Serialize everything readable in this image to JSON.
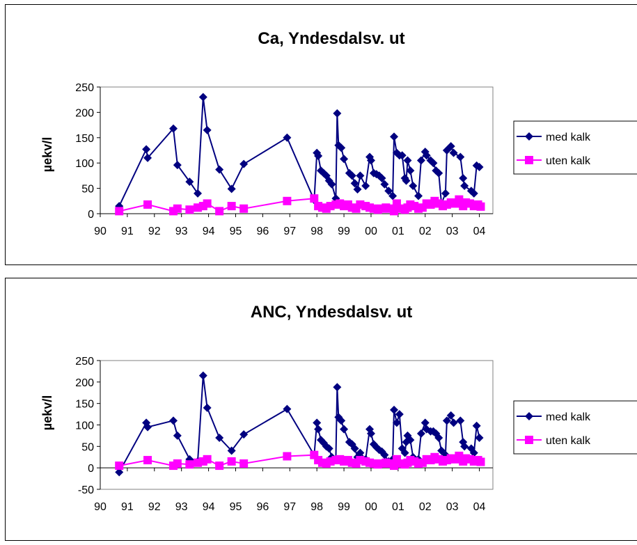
{
  "chart_data": [
    {
      "type": "line",
      "title": "Ca, Yndesdalsv. ut",
      "ylabel": "µekv/l",
      "xlabel": "",
      "x_tick_labels": [
        "90",
        "91",
        "92",
        "93",
        "94",
        "95",
        "96",
        "97",
        "98",
        "99",
        "00",
        "01",
        "02",
        "03",
        "04"
      ],
      "xlim": [
        1990,
        2004.5
      ],
      "ylim": [
        0,
        250
      ],
      "y_ticks": [
        0,
        50,
        100,
        150,
        200,
        250
      ],
      "legend_position": "right",
      "series": [
        {
          "name": "med kalk",
          "color": "#000080",
          "marker": "diamond",
          "x": [
            1990.7,
            1991.7,
            1991.75,
            1992.7,
            1992.85,
            1993.3,
            1993.6,
            1993.8,
            1993.95,
            1994.4,
            1994.85,
            1995.3,
            1996.9,
            1997.9,
            1998.0,
            1998.05,
            1998.15,
            1998.25,
            1998.35,
            1998.45,
            1998.55,
            1998.7,
            1998.75,
            1998.8,
            1998.9,
            1999.0,
            1999.2,
            1999.3,
            1999.4,
            1999.5,
            1999.6,
            1999.8,
            1999.95,
            2000.0,
            2000.1,
            2000.2,
            2000.3,
            2000.4,
            2000.5,
            2000.65,
            2000.8,
            2000.85,
            2000.95,
            2001.05,
            2001.15,
            2001.25,
            2001.3,
            2001.35,
            2001.45,
            2001.55,
            2001.75,
            2001.85,
            2002.0,
            2002.05,
            2002.2,
            2002.3,
            2002.4,
            2002.5,
            2002.6,
            2002.75,
            2002.8,
            2002.95,
            2003.05,
            2003.3,
            2003.4,
            2003.45,
            2003.7,
            2003.8,
            2003.9,
            2004.0
          ],
          "values": [
            15,
            127,
            110,
            168,
            96,
            63,
            40,
            230,
            165,
            87,
            49,
            98,
            150,
            27,
            120,
            114,
            85,
            80,
            75,
            65,
            58,
            30,
            198,
            135,
            130,
            108,
            80,
            75,
            60,
            48,
            75,
            55,
            112,
            105,
            80,
            78,
            75,
            70,
            58,
            45,
            35,
            152,
            120,
            115,
            115,
            70,
            65,
            105,
            85,
            55,
            35,
            105,
            122,
            115,
            105,
            100,
            85,
            80,
            20,
            40,
            125,
            133,
            120,
            112,
            70,
            55,
            45,
            40,
            95,
            92
          ]
        },
        {
          "name": "uten kalk",
          "color": "#ff00ff",
          "marker": "square",
          "x": [
            1990.7,
            1991.75,
            1992.7,
            1992.85,
            1993.3,
            1993.6,
            1993.8,
            1993.95,
            1994.4,
            1994.85,
            1995.3,
            1996.9,
            1997.9,
            1998.05,
            1998.2,
            1998.35,
            1998.5,
            1998.7,
            1998.85,
            1999.0,
            1999.15,
            1999.3,
            1999.45,
            1999.6,
            1999.8,
            1999.95,
            2000.1,
            2000.25,
            2000.4,
            2000.55,
            2000.7,
            2000.85,
            2000.95,
            2001.1,
            2001.25,
            2001.35,
            2001.45,
            2001.6,
            2001.75,
            2001.9,
            2002.05,
            2002.2,
            2002.35,
            2002.5,
            2002.65,
            2002.8,
            2002.95,
            2003.1,
            2003.25,
            2003.4,
            2003.5,
            2003.65,
            2003.8,
            2003.95,
            2004.05
          ],
          "values": [
            5,
            18,
            5,
            10,
            8,
            12,
            15,
            20,
            5,
            15,
            10,
            25,
            30,
            15,
            12,
            10,
            15,
            18,
            20,
            15,
            18,
            12,
            10,
            18,
            15,
            12,
            10,
            8,
            10,
            12,
            10,
            5,
            20,
            10,
            8,
            12,
            18,
            15,
            10,
            12,
            20,
            18,
            25,
            20,
            15,
            18,
            22,
            20,
            28,
            15,
            22,
            20,
            15,
            18,
            14
          ]
        }
      ]
    },
    {
      "type": "line",
      "title": "ANC, Yndesdalsv. ut",
      "ylabel": "µekv/l",
      "xlabel": "",
      "x_tick_labels": [
        "90",
        "91",
        "92",
        "93",
        "94",
        "95",
        "96",
        "97",
        "98",
        "99",
        "00",
        "01",
        "02",
        "03",
        "04"
      ],
      "xlim": [
        1990,
        2004.5
      ],
      "ylim": [
        -50,
        250
      ],
      "y_ticks": [
        -50,
        0,
        50,
        100,
        150,
        200,
        250
      ],
      "legend_position": "right",
      "series": [
        {
          "name": "med kalk",
          "color": "#000080",
          "marker": "diamond",
          "x": [
            1990.7,
            1991.7,
            1991.75,
            1992.7,
            1992.85,
            1993.3,
            1993.6,
            1993.8,
            1993.95,
            1994.4,
            1994.85,
            1995.3,
            1996.9,
            1997.9,
            1998.0,
            1998.05,
            1998.15,
            1998.25,
            1998.35,
            1998.45,
            1998.55,
            1998.7,
            1998.75,
            1998.8,
            1998.9,
            1999.0,
            1999.2,
            1999.3,
            1999.4,
            1999.5,
            1999.6,
            1999.8,
            1999.95,
            2000.0,
            2000.1,
            2000.2,
            2000.3,
            2000.4,
            2000.5,
            2000.65,
            2000.8,
            2000.85,
            2000.95,
            2001.05,
            2001.15,
            2001.25,
            2001.3,
            2001.35,
            2001.45,
            2001.55,
            2001.75,
            2001.85,
            2002.0,
            2002.05,
            2002.2,
            2002.3,
            2002.4,
            2002.5,
            2002.6,
            2002.75,
            2002.8,
            2002.95,
            2003.05,
            2003.3,
            2003.4,
            2003.45,
            2003.7,
            2003.8,
            2003.9,
            2004.0
          ],
          "values": [
            -10,
            105,
            95,
            110,
            75,
            20,
            15,
            215,
            140,
            70,
            40,
            78,
            137,
            30,
            105,
            90,
            65,
            58,
            50,
            45,
            25,
            20,
            188,
            118,
            110,
            90,
            60,
            55,
            45,
            25,
            35,
            20,
            90,
            80,
            55,
            48,
            42,
            38,
            30,
            15,
            20,
            135,
            105,
            125,
            45,
            35,
            60,
            75,
            65,
            25,
            20,
            80,
            105,
            90,
            85,
            85,
            80,
            70,
            40,
            30,
            110,
            122,
            105,
            110,
            60,
            50,
            45,
            35,
            98,
            70
          ]
        },
        {
          "name": "uten kalk",
          "color": "#ff00ff",
          "marker": "square",
          "x": [
            1990.7,
            1991.75,
            1992.7,
            1992.85,
            1993.3,
            1993.6,
            1993.8,
            1993.95,
            1994.4,
            1994.85,
            1995.3,
            1996.9,
            1997.9,
            1998.05,
            1998.2,
            1998.35,
            1998.5,
            1998.7,
            1998.85,
            1999.0,
            1999.15,
            1999.3,
            1999.45,
            1999.6,
            1999.8,
            1999.95,
            2000.1,
            2000.25,
            2000.4,
            2000.55,
            2000.7,
            2000.85,
            2000.95,
            2001.1,
            2001.25,
            2001.35,
            2001.45,
            2001.6,
            2001.75,
            2001.9,
            2002.05,
            2002.2,
            2002.35,
            2002.5,
            2002.65,
            2002.8,
            2002.95,
            2003.1,
            2003.25,
            2003.4,
            2003.5,
            2003.65,
            2003.8,
            2003.95,
            2004.05
          ],
          "values": [
            5,
            18,
            5,
            10,
            8,
            12,
            15,
            20,
            5,
            15,
            10,
            27,
            30,
            18,
            12,
            10,
            15,
            18,
            20,
            15,
            18,
            12,
            10,
            18,
            15,
            12,
            10,
            8,
            10,
            12,
            10,
            5,
            20,
            10,
            8,
            12,
            18,
            15,
            10,
            12,
            20,
            18,
            25,
            20,
            15,
            18,
            22,
            20,
            28,
            15,
            22,
            20,
            15,
            18,
            14
          ]
        }
      ]
    }
  ]
}
